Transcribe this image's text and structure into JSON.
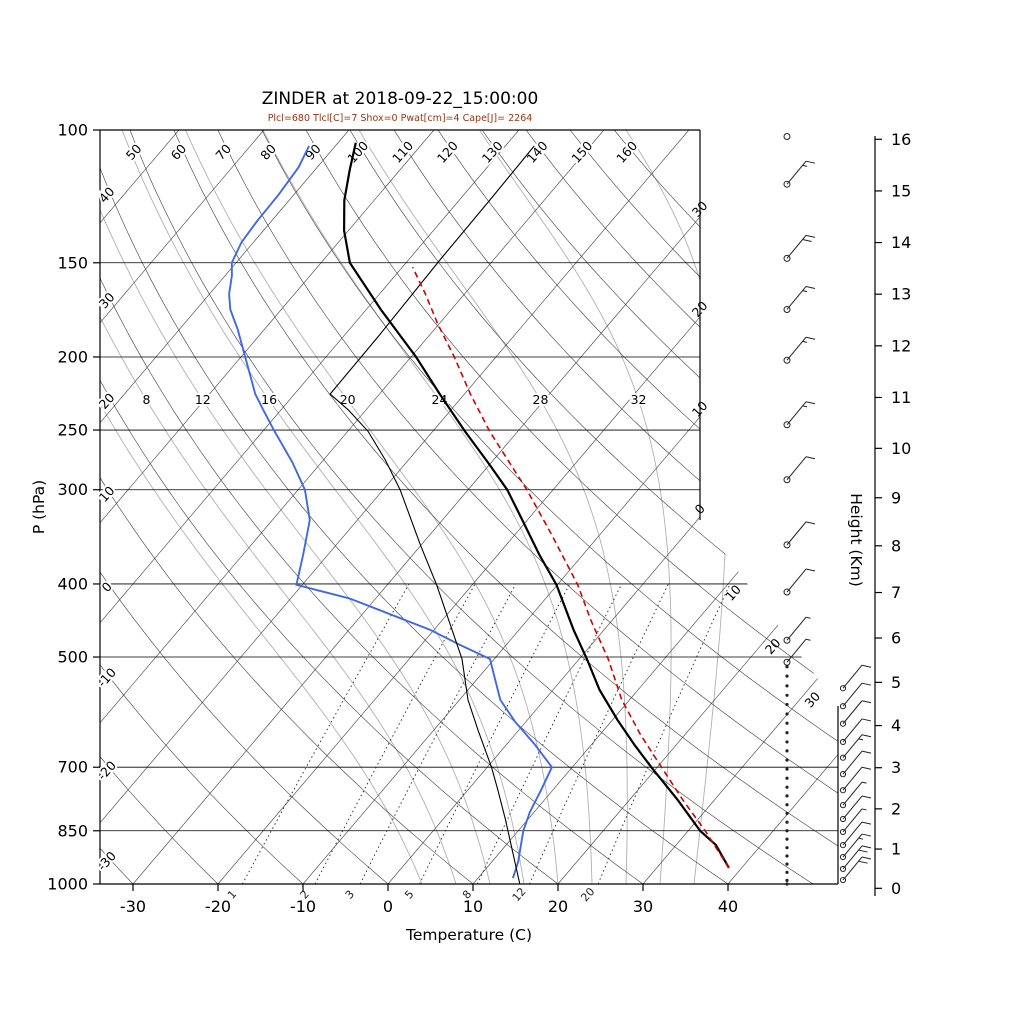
{
  "title": "ZINDER at 2018-09-22_15:00:00",
  "subtitle": "Plcl=680 Tlcl[C]=7 Shox=0 Pwat[cm]=4 Cape[J]= 2264",
  "station": "ZINDER",
  "timestamp": "2018-09-22_15:00:00",
  "indices": {
    "Plcl": 680,
    "Tlcl_C": 7,
    "Shox": 0,
    "Pwat_cm": 4,
    "Cape_J": 2264
  },
  "colors": {
    "temperature": "#000000",
    "secondary_profile": "#000000",
    "dewpoint": "#4169e1",
    "parcel": "#d40000",
    "subtitle": "#993311",
    "isotherm": "#3c3c3c",
    "dry_adiabat": "#3c3c3c",
    "moist_adiabat": "#b0b0b0",
    "mixing_ratio": "#222222",
    "frame": "#000000"
  },
  "axes": {
    "pressure_label": "P (hPa)",
    "temperature_label": "Temperature (C)",
    "height_label": "Height (Km)",
    "pressure_ticks": [
      100,
      150,
      200,
      250,
      300,
      400,
      500,
      700,
      850,
      1000
    ],
    "temperature_ticks": [
      -30,
      -20,
      -10,
      0,
      10,
      20,
      30,
      40
    ],
    "height_ticks_km": [
      0,
      1,
      2,
      3,
      4,
      5,
      6,
      7,
      8,
      9,
      10,
      11,
      12,
      13,
      14,
      15,
      16
    ]
  },
  "background_lines": {
    "isotherm_labels_right_edge": [
      -30,
      -20,
      -10,
      0
    ],
    "isotherm_labels_diagonal_edge": [
      10,
      20,
      30
    ],
    "dry_adiabat_labels_top": [
      50,
      60,
      70,
      80,
      90,
      100,
      110,
      120,
      130,
      140,
      150,
      160
    ],
    "dry_adiabat_labels_left": [
      40,
      30,
      20,
      10,
      0,
      -10,
      -20,
      -30
    ],
    "moist_adiabat_labels": [
      8,
      12,
      16,
      20,
      24,
      28,
      32
    ],
    "moist_adiabat_curves": [
      4,
      8,
      12,
      16,
      20,
      24,
      28,
      32,
      36
    ],
    "mixing_ratio_labels_g_kg": [
      1,
      2,
      3,
      5,
      8,
      12,
      20
    ]
  },
  "chart_data": {
    "type": "line",
    "title": "ZINDER at 2018-09-22_15:00:00",
    "xlabel": "Temperature (C)",
    "ylabel": "P (hPa)",
    "x_range_C": [
      -35,
      45
    ],
    "y_scale": "log",
    "y_range_hPa": [
      1000,
      100
    ],
    "series": [
      {
        "name": "temperature",
        "legend": "temperature profile",
        "color": "#000000",
        "style": "solid",
        "width": 2.2,
        "points_p_t": [
          [
            952,
            38.5
          ],
          [
            888,
            34.7
          ],
          [
            850,
            31.4
          ],
          [
            774,
            25.7
          ],
          [
            700,
            19.3
          ],
          [
            654,
            15.1
          ],
          [
            606,
            10.6
          ],
          [
            553,
            5.5
          ],
          [
            503,
            0.9
          ],
          [
            460,
            -3.6
          ],
          [
            401,
            -10.1
          ],
          [
            366,
            -15.1
          ],
          [
            329,
            -20.6
          ],
          [
            300,
            -25.4
          ],
          [
            276,
            -30.4
          ],
          [
            251,
            -36.2
          ],
          [
            224,
            -42.9
          ],
          [
            200,
            -49.4
          ],
          [
            173,
            -58.3
          ],
          [
            150,
            -66.6
          ],
          [
            136,
            -70.5
          ],
          [
            124,
            -73.5
          ],
          [
            113,
            -75.9
          ],
          [
            104,
            -77.9
          ]
        ]
      },
      {
        "name": "dewpoint",
        "legend": "dewpoint profile",
        "color": "#4169e1",
        "style": "solid",
        "width": 1.9,
        "points_p_t": [
          [
            982,
            14.1
          ],
          [
            935,
            13.1
          ],
          [
            850,
            10.6
          ],
          [
            803,
            9.5
          ],
          [
            750,
            8.6
          ],
          [
            700,
            7.6
          ],
          [
            654,
            3.4
          ],
          [
            610,
            -1.2
          ],
          [
            570,
            -5.2
          ],
          [
            520,
            -9.1
          ],
          [
            503,
            -10.5
          ],
          [
            482,
            -15.4
          ],
          [
            460,
            -20.5
          ],
          [
            418,
            -33.1
          ],
          [
            401,
            -40.7
          ],
          [
            366,
            -42.9
          ],
          [
            329,
            -45.6
          ],
          [
            300,
            -49.2
          ],
          [
            276,
            -53.4
          ],
          [
            251,
            -58.6
          ],
          [
            235,
            -62.1
          ],
          [
            224,
            -64.6
          ],
          [
            200,
            -69.5
          ],
          [
            184,
            -73.1
          ],
          [
            173,
            -76.0
          ],
          [
            165,
            -77.7
          ],
          [
            156,
            -79.2
          ],
          [
            150,
            -80.5
          ],
          [
            141,
            -81.4
          ],
          [
            132,
            -81.7
          ],
          [
            122,
            -81.8
          ],
          [
            112,
            -82.2
          ],
          [
            105,
            -83.1
          ]
        ]
      },
      {
        "name": "secondary_profile",
        "legend": "secondary thin profile",
        "color": "#000000",
        "style": "solid",
        "width": 1.1,
        "points_p_t": [
          [
            1000,
            15.5
          ],
          [
            901,
            11.2
          ],
          [
            822,
            7.4
          ],
          [
            750,
            3.5
          ],
          [
            700,
            0.5
          ],
          [
            625,
            -4.8
          ],
          [
            570,
            -9.0
          ],
          [
            503,
            -13.8
          ],
          [
            453,
            -18.6
          ],
          [
            401,
            -24.2
          ],
          [
            355,
            -30.1
          ],
          [
            300,
            -38.0
          ],
          [
            274,
            -42.7
          ],
          [
            251,
            -47.6
          ],
          [
            235,
            -52.1
          ],
          [
            224,
            -55.8
          ],
          [
            187,
            -55.9
          ],
          [
            149,
            -56.3
          ],
          [
            124,
            -56.4
          ],
          [
            105,
            -56.6
          ]
        ]
      },
      {
        "name": "parcel_ascent",
        "legend": "lifted parcel",
        "color": "#d40000",
        "style": "dashed",
        "width": 1.6,
        "points_p_t": [
          [
            952,
            38.5
          ],
          [
            850,
            32.0
          ],
          [
            774,
            26.3
          ],
          [
            700,
            20.5
          ],
          [
            634,
            14.8
          ],
          [
            570,
            9.1
          ],
          [
            503,
            3.4
          ],
          [
            447,
            -2.5
          ],
          [
            401,
            -7.6
          ],
          [
            344,
            -15.7
          ],
          [
            300,
            -23.1
          ],
          [
            273,
            -28.5
          ],
          [
            251,
            -33.3
          ],
          [
            224,
            -39.3
          ],
          [
            200,
            -44.9
          ],
          [
            181,
            -50.1
          ],
          [
            165,
            -54.6
          ],
          [
            152,
            -58.8
          ]
        ]
      }
    ],
    "wind_barbs": {
      "main_column": [
        {
          "p": 102,
          "kt": 0
        },
        {
          "p": 118,
          "kt": 15
        },
        {
          "p": 148,
          "kt": 20
        },
        {
          "p": 173,
          "kt": 15
        },
        {
          "p": 202,
          "kt": 15
        },
        {
          "p": 246,
          "kt": 15
        },
        {
          "p": 291,
          "kt": 10
        },
        {
          "p": 355,
          "kt": 10
        },
        {
          "p": 410,
          "kt": 10
        },
        {
          "p": 475,
          "kt": 5
        },
        {
          "p": 508,
          "kt": 5
        }
      ],
      "offset_column": [
        {
          "p": 550,
          "kt": 10
        },
        {
          "p": 581,
          "kt": 10
        },
        {
          "p": 613,
          "kt": 10
        },
        {
          "p": 648,
          "kt": 10
        },
        {
          "p": 680,
          "kt": 15
        },
        {
          "p": 715,
          "kt": 10
        },
        {
          "p": 751,
          "kt": 10
        },
        {
          "p": 786,
          "kt": 5
        },
        {
          "p": 820,
          "kt": 10
        },
        {
          "p": 853,
          "kt": 5
        },
        {
          "p": 888,
          "kt": 10
        },
        {
          "p": 921,
          "kt": 15
        },
        {
          "p": 955,
          "kt": 20
        },
        {
          "p": 988,
          "kt": 20
        }
      ],
      "dot_levels_p": [
        515,
        530,
        546,
        562,
        578,
        595,
        612,
        630,
        648,
        666,
        685,
        704,
        724,
        744,
        764,
        785,
        806,
        828,
        850,
        872,
        895,
        918,
        941,
        965,
        989,
        1000
      ]
    }
  }
}
